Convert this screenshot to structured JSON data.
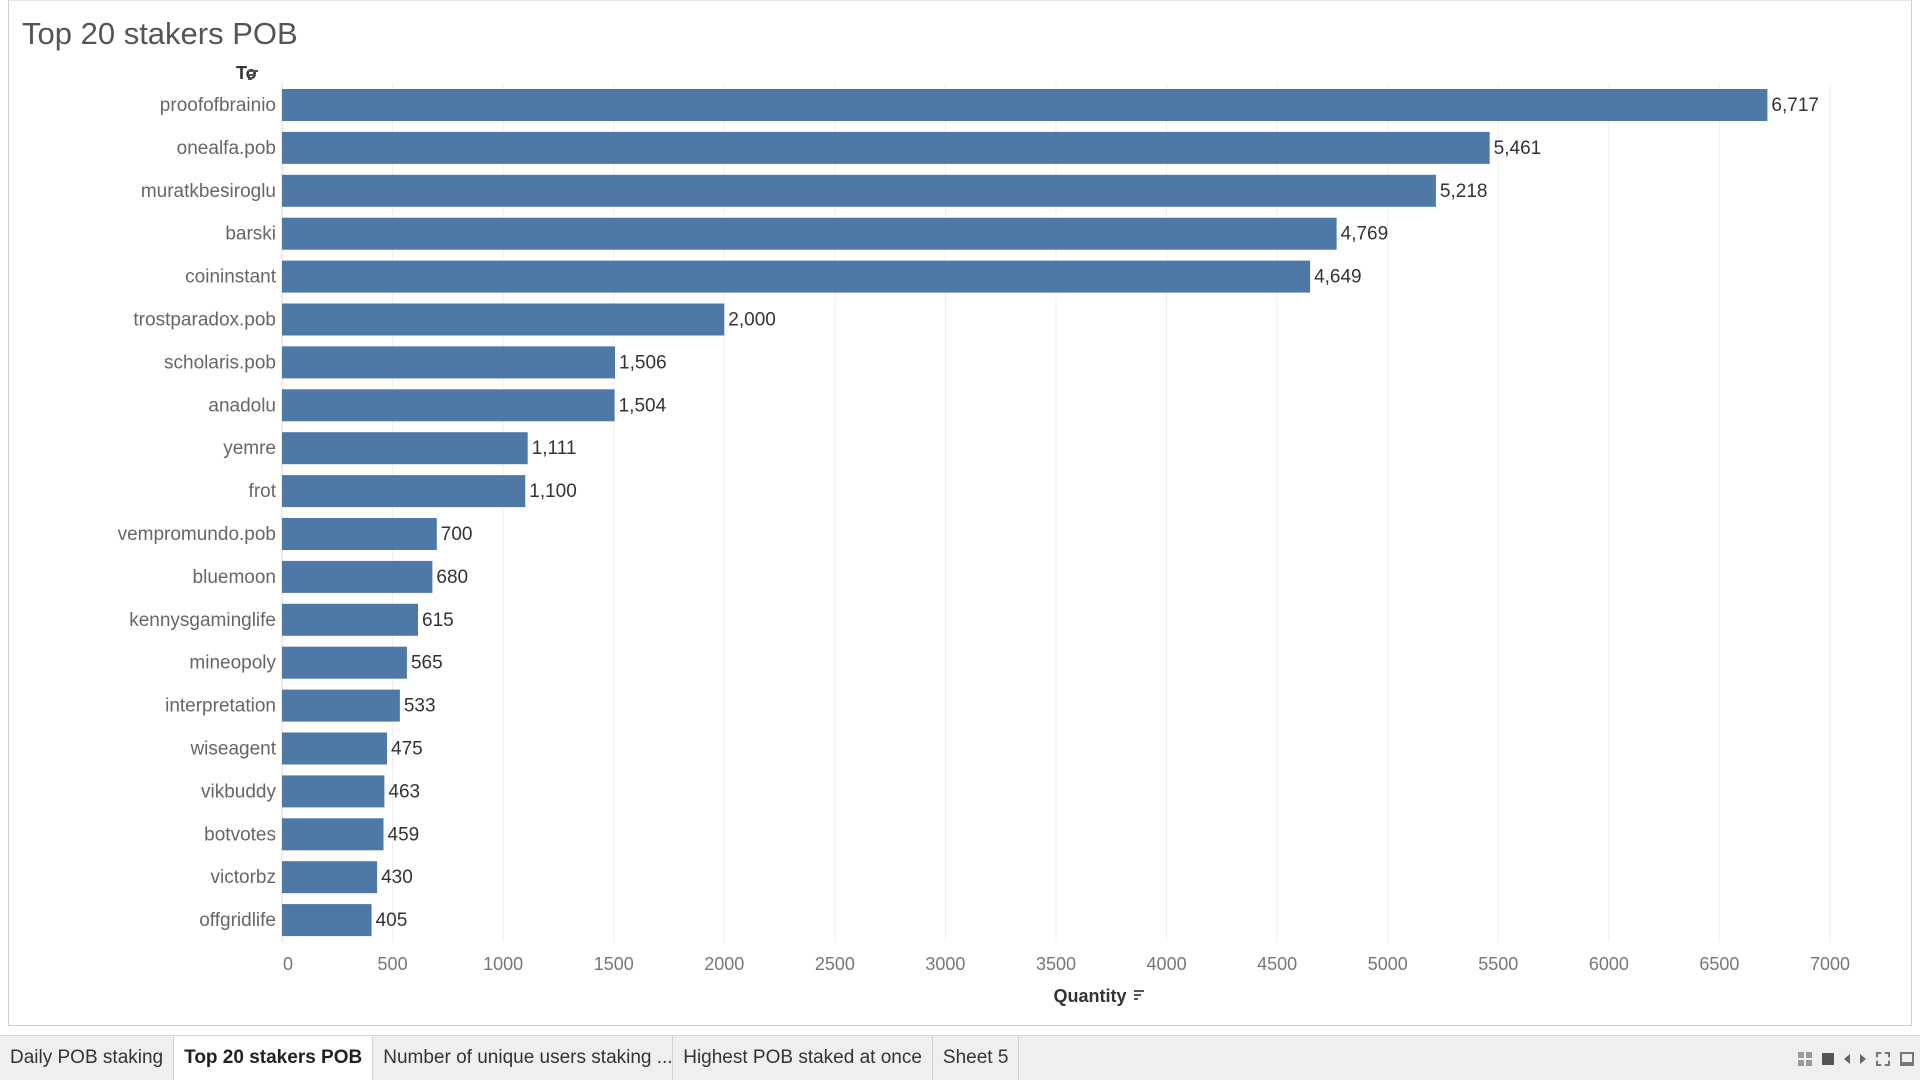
{
  "chart_data": {
    "type": "bar",
    "orientation": "horizontal",
    "title": "Top 20 stakers POB",
    "ylabel": "To",
    "xlabel": "Quantity",
    "xlim": [
      0,
      7000
    ],
    "xticks": [
      0,
      500,
      1000,
      1500,
      2000,
      2500,
      3000,
      3500,
      4000,
      4500,
      5000,
      5500,
      6000,
      6500,
      7000
    ],
    "grid": "vertical",
    "bar_color": "#4e79a7",
    "categories": [
      "proofofbrainio",
      "onealfa.pob",
      "muratkbesiroglu",
      "barski",
      "coininstant",
      "trostparadox.pob",
      "scholaris.pob",
      "anadolu",
      "yemre",
      "frot",
      "vempromundo.pob",
      "bluemoon",
      "kennysgaminglife",
      "mineopoly",
      "interpretation",
      "wiseagent",
      "vikbuddy",
      "botvotes",
      "victorbz",
      "offgridlife"
    ],
    "values": [
      6717,
      5461,
      5218,
      4769,
      4649,
      2000,
      1506,
      1504,
      1111,
      1100,
      700,
      680,
      615,
      565,
      533,
      475,
      463,
      459,
      430,
      405
    ],
    "value_labels": [
      "6,717",
      "5,461",
      "5,218",
      "4,769",
      "4,649",
      "2,000",
      "1,506",
      "1,504",
      "1,111",
      "1,100",
      "700",
      "680",
      "615",
      "565",
      "533",
      "475",
      "463",
      "459",
      "430",
      "405"
    ]
  },
  "tabs": [
    {
      "label": "Daily POB staking",
      "active": false
    },
    {
      "label": "Top 20 stakers POB",
      "active": true
    },
    {
      "label": "Number of unique users staking ...",
      "active": false
    },
    {
      "label": "Highest POB staked at once",
      "active": false
    },
    {
      "label": "Sheet 5",
      "active": false
    }
  ],
  "icons": {
    "sort": "sort-descending-icon",
    "nav": [
      "grid-view-icon",
      "filmstrip-view-icon",
      "arrow-left-icon",
      "arrow-right-icon",
      "fullscreen-icon",
      "presentation-mode-icon"
    ]
  }
}
